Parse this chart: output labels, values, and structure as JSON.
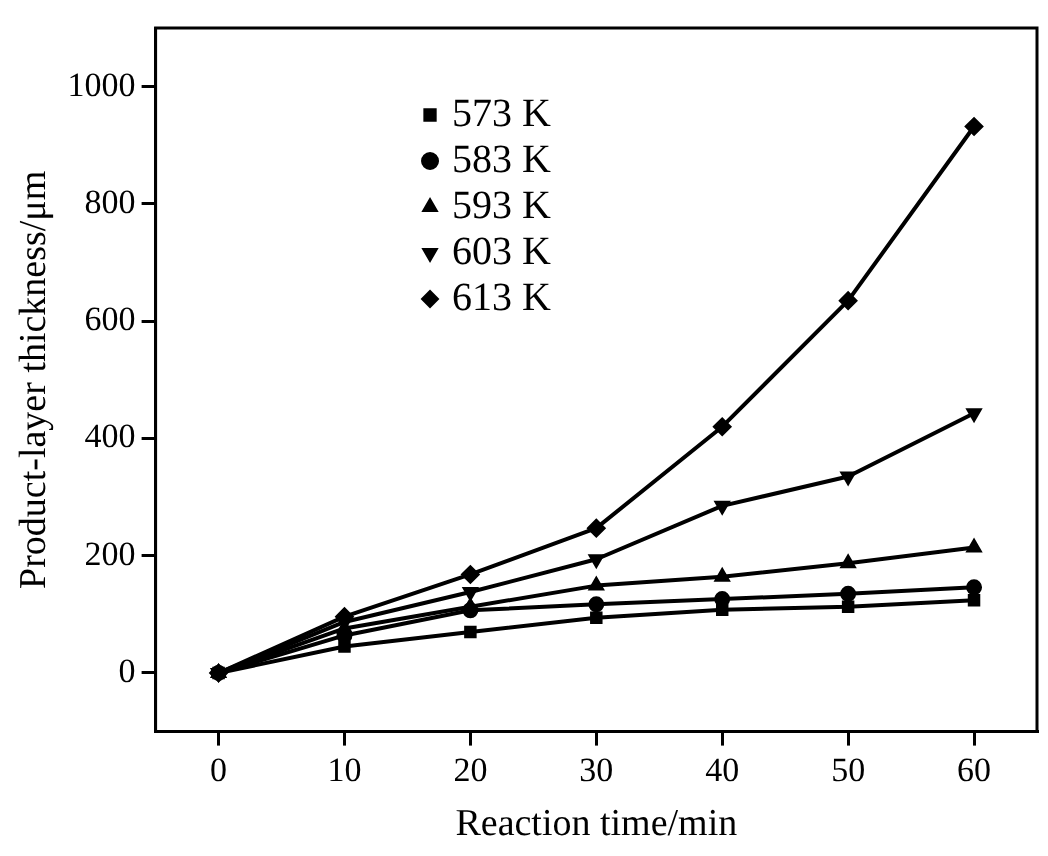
{
  "chart_data": {
    "type": "line",
    "xlabel": "Reaction time/min",
    "ylabel": "Product-layer thickness/μm",
    "x": [
      0,
      10,
      20,
      30,
      40,
      50,
      60
    ],
    "xlim": [
      -5,
      65
    ],
    "xticks": [
      0,
      10,
      20,
      30,
      40,
      50,
      60
    ],
    "ylim": [
      -100,
      1100
    ],
    "yticks": [
      0,
      200,
      400,
      600,
      800,
      1000
    ],
    "grid": false,
    "legend": "top left",
    "line_style": "solid",
    "series": [
      {
        "name": "573 K",
        "color": "#000000",
        "marker": "square",
        "values": [
          0,
          45,
          70,
          94,
          108,
          113,
          124
        ]
      },
      {
        "name": "583 K",
        "color": "#000000",
        "marker": "circle",
        "values": [
          0,
          64,
          107,
          117,
          126,
          135,
          146
        ]
      },
      {
        "name": "593 K",
        "color": "#000000",
        "marker": "triangle",
        "values": [
          0,
          76,
          113,
          149,
          164,
          187,
          214
        ]
      },
      {
        "name": "603 K",
        "color": "#000000",
        "marker": "triangle-down",
        "values": [
          0,
          87,
          138,
          194,
          285,
          335,
          443
        ]
      },
      {
        "name": "613 K",
        "color": "#000000",
        "marker": "diamond",
        "values": [
          0,
          96,
          168,
          247,
          420,
          635,
          932
        ]
      }
    ]
  }
}
